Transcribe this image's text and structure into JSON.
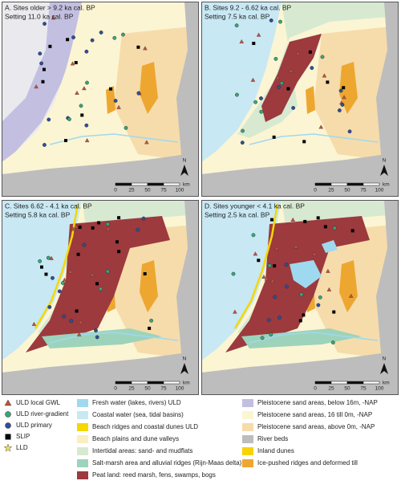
{
  "panels": [
    {
      "title": "A. Sites older > 9.2 ka cal. BP",
      "setting": "Setting 11.0 ka cal. BP"
    },
    {
      "title": "B. Sites 9.2 - 6.62 ka cal. BP",
      "setting": "Setting 7.5 ka cal. BP"
    },
    {
      "title": "C. Sites 6.62 - 4.1 ka cal. BP",
      "setting": "Setting 5.8 ka cal. BP"
    },
    {
      "title": "D. Sites younger < 4.1 ka cal. BP",
      "setting": "Setting 2.5 ka cal. BP"
    }
  ],
  "scale_bar": {
    "labels": [
      "0",
      "25",
      "50",
      "75",
      "100"
    ],
    "unit": "km"
  },
  "north": "N",
  "legend": {
    "sites": [
      {
        "label": "ULD local GWL",
        "shape": "triangle",
        "color": "#c0503a"
      },
      {
        "label": "ULD river-gradient",
        "shape": "circle",
        "color": "#3aa57a"
      },
      {
        "label": "ULD primary",
        "shape": "circle",
        "color": "#2d4e9a"
      },
      {
        "label": "SLIP",
        "shape": "square",
        "color": "#000000"
      },
      {
        "label": "LLD",
        "shape": "star",
        "color": "#f5e04a"
      }
    ],
    "units": [
      {
        "label": "Fresh water (lakes, rivers) ULD",
        "color": "#9fd9ef"
      },
      {
        "label": "Coastal water (sea, tidal basins)",
        "color": "#c8e8f3"
      },
      {
        "label": "Beach ridges and coastal dunes ULD",
        "color": "#f5d800"
      },
      {
        "label": "Beach plains and dune valleys",
        "color": "#fbeec0"
      },
      {
        "label": "Intertidal areas: sand- and mudflats",
        "color": "#d7ead1"
      },
      {
        "label": "Salt-marsh area and alluvial ridges (Rijn-Maas delta)",
        "color": "#9dd3bb"
      },
      {
        "label": "Peat land: reed marsh, fens, swamps, bogs",
        "color": "#9c3a3e"
      }
    ],
    "pleistocene": [
      {
        "label": "Pleistocene sand areas, below 16m, -NAP",
        "color": "#c3bfe0"
      },
      {
        "label": "Pleistocene sand areas, 16 till 0m, -NAP",
        "color": "#fbf5d3"
      },
      {
        "label": "Pleistocene sand areas, above 0m, -NAP",
        "color": "#f6dcab"
      },
      {
        "label": "River beds",
        "color": "#bdbdbd"
      },
      {
        "label": "Inland dunes",
        "color": "#f7d300"
      },
      {
        "label": "Ice-pushed ridges and deformed till",
        "color": "#eda730"
      }
    ]
  }
}
